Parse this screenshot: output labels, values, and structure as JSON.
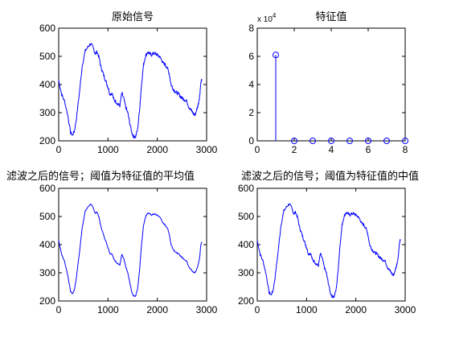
{
  "colors": {
    "series": "#0000ff",
    "axes": "#000000",
    "background": "#ffffff"
  },
  "chart_data": [
    {
      "id": "orig",
      "type": "line",
      "title": "原始信号",
      "xlim": [
        0,
        3000
      ],
      "ylim": [
        200,
        600
      ],
      "xticks": [
        0,
        1000,
        2000,
        3000
      ],
      "yticks": [
        200,
        300,
        400,
        500,
        600
      ],
      "series": [
        {
          "noise": 6,
          "x": [
            0,
            60,
            120,
            180,
            240,
            280,
            320,
            360,
            420,
            480,
            540,
            600,
            650,
            700,
            740,
            780,
            820,
            860,
            900,
            940,
            980,
            1000,
            1040,
            1080,
            1120,
            1160,
            1200,
            1240,
            1280,
            1320,
            1360,
            1400,
            1440,
            1480,
            1520,
            1560,
            1600,
            1640,
            1680,
            1720,
            1760,
            1800,
            1840,
            1880,
            1920,
            1960,
            2000,
            2040,
            2080,
            2120,
            2160,
            2200,
            2240,
            2280,
            2320,
            2360,
            2400,
            2440,
            2480,
            2520,
            2560,
            2600,
            2640,
            2680,
            2720,
            2760,
            2800,
            2830,
            2860,
            2880,
            2900
          ],
          "y": [
            415,
            365,
            340,
            295,
            230,
            220,
            235,
            280,
            370,
            470,
            520,
            535,
            545,
            530,
            510,
            515,
            495,
            460,
            440,
            420,
            400,
            390,
            365,
            370,
            345,
            340,
            330,
            325,
            370,
            350,
            320,
            300,
            265,
            230,
            215,
            215,
            240,
            310,
            400,
            470,
            500,
            515,
            510,
            505,
            510,
            510,
            505,
            500,
            490,
            475,
            470,
            460,
            440,
            400,
            385,
            375,
            370,
            365,
            355,
            350,
            345,
            340,
            320,
            310,
            300,
            290,
            310,
            330,
            360,
            400,
            420
          ]
        }
      ]
    },
    {
      "id": "eig",
      "type": "stem",
      "title": "特征值",
      "exponent_label": "x 10",
      "exponent_power": "4",
      "xlim": [
        0,
        8
      ],
      "ylim": [
        0,
        8
      ],
      "xticks": [
        0,
        2,
        4,
        6,
        8
      ],
      "yticks": [
        0,
        2,
        4,
        6,
        8
      ],
      "series": [
        {
          "x": [
            1,
            2,
            3,
            4,
            5,
            6,
            7,
            8
          ],
          "y": [
            6.1,
            0,
            0,
            0,
            0,
            0,
            0,
            0
          ]
        }
      ]
    },
    {
      "id": "mean",
      "type": "line",
      "title": "滤波之后的信号；阈值为特征值的平均值",
      "xlim": [
        0,
        3000
      ],
      "ylim": [
        200,
        600
      ],
      "xticks": [
        0,
        1000,
        2000,
        3000
      ],
      "yticks": [
        200,
        300,
        400,
        500,
        600
      ],
      "series": [
        {
          "noise": 2,
          "x": [
            0,
            60,
            120,
            180,
            240,
            280,
            320,
            360,
            420,
            480,
            540,
            600,
            650,
            700,
            740,
            780,
            820,
            860,
            900,
            940,
            980,
            1000,
            1040,
            1080,
            1120,
            1160,
            1200,
            1240,
            1280,
            1320,
            1360,
            1400,
            1440,
            1480,
            1520,
            1560,
            1600,
            1640,
            1680,
            1720,
            1760,
            1800,
            1840,
            1880,
            1920,
            1960,
            2000,
            2040,
            2080,
            2120,
            2160,
            2200,
            2240,
            2280,
            2320,
            2360,
            2400,
            2440,
            2480,
            2520,
            2560,
            2600,
            2640,
            2680,
            2720,
            2760,
            2800,
            2830,
            2860,
            2880,
            2900
          ],
          "y": [
            415,
            365,
            340,
            295,
            235,
            225,
            240,
            285,
            370,
            465,
            520,
            535,
            545,
            530,
            512,
            515,
            495,
            462,
            440,
            420,
            400,
            390,
            368,
            368,
            348,
            340,
            332,
            328,
            365,
            350,
            322,
            300,
            268,
            232,
            218,
            218,
            242,
            310,
            400,
            468,
            498,
            512,
            510,
            505,
            508,
            508,
            504,
            500,
            490,
            475,
            470,
            460,
            440,
            400,
            385,
            375,
            370,
            366,
            358,
            352,
            346,
            340,
            322,
            312,
            304,
            300,
            312,
            330,
            355,
            395,
            410
          ]
        }
      ]
    },
    {
      "id": "median",
      "type": "line",
      "title": "滤波之后的信号；阈值为特征值的中值",
      "xlim": [
        0,
        3000
      ],
      "ylim": [
        200,
        600
      ],
      "xticks": [
        0,
        1000,
        2000,
        3000
      ],
      "yticks": [
        200,
        300,
        400,
        500,
        600
      ],
      "series": [
        {
          "noise": 5,
          "x": [
            0,
            60,
            120,
            180,
            240,
            280,
            320,
            360,
            420,
            480,
            540,
            600,
            650,
            700,
            740,
            780,
            820,
            860,
            900,
            940,
            980,
            1000,
            1040,
            1080,
            1120,
            1160,
            1200,
            1240,
            1280,
            1320,
            1360,
            1400,
            1440,
            1480,
            1520,
            1560,
            1600,
            1640,
            1680,
            1720,
            1760,
            1800,
            1840,
            1880,
            1920,
            1960,
            2000,
            2040,
            2080,
            2120,
            2160,
            2200,
            2240,
            2280,
            2320,
            2360,
            2400,
            2440,
            2480,
            2520,
            2560,
            2600,
            2640,
            2680,
            2720,
            2760,
            2800,
            2830,
            2860,
            2880,
            2900
          ],
          "y": [
            415,
            365,
            340,
            295,
            230,
            222,
            236,
            282,
            370,
            468,
            520,
            535,
            545,
            530,
            510,
            515,
            495,
            460,
            440,
            420,
            400,
            390,
            366,
            370,
            346,
            340,
            330,
            326,
            368,
            350,
            320,
            300,
            266,
            230,
            216,
            216,
            240,
            310,
            400,
            470,
            500,
            514,
            510,
            505,
            510,
            510,
            505,
            500,
            490,
            475,
            470,
            460,
            440,
            400,
            385,
            375,
            370,
            365,
            355,
            350,
            345,
            340,
            320,
            310,
            300,
            290,
            310,
            330,
            358,
            398,
            420
          ]
        }
      ]
    }
  ]
}
